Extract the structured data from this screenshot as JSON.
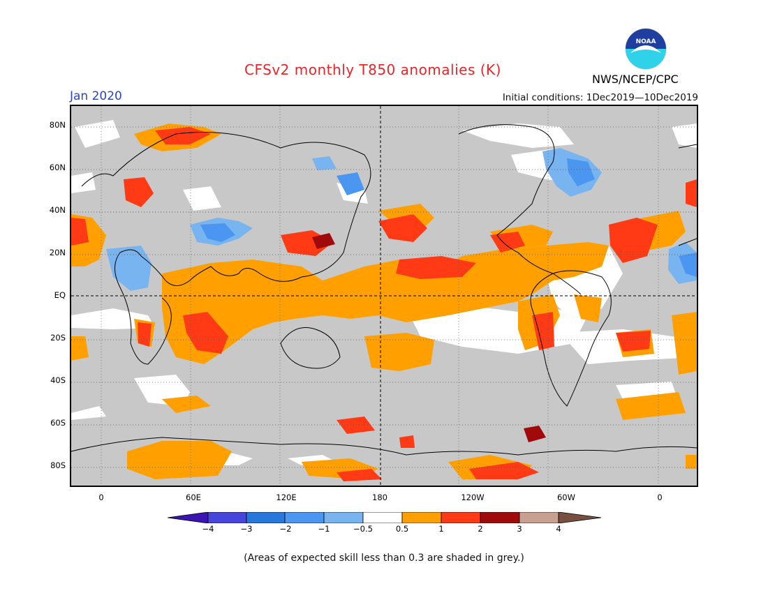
{
  "header": {
    "title": "CFSv2 monthly T850 anomalies (K)",
    "valid_month": "Jan 2020",
    "initial_conditions": "Initial conditions: 1Dec2019—10Dec2019",
    "agency": "NWS/NCEP/CPC",
    "logo_text": "NOAA"
  },
  "map": {
    "projection": "cylindrical equidistant",
    "lon_range": [
      -30,
      390
    ],
    "lat_range": [
      -90,
      90
    ],
    "y_tick_labels": [
      "80N",
      "60N",
      "40N",
      "20N",
      "EQ",
      "20S",
      "40S",
      "60S",
      "80S"
    ],
    "x_tick_labels": [
      "0",
      "60E",
      "120E",
      "180",
      "120W",
      "60W",
      "0"
    ],
    "skill_mask_color": "#c8c8c8",
    "dashed_reference_lines": [
      "Equator",
      "180"
    ]
  },
  "colorbar": {
    "labels": [
      "−4",
      "−3",
      "−2",
      "−1",
      "−0.5",
      "0.5",
      "1",
      "2",
      "3",
      "4"
    ],
    "colors": [
      "#3c14b4",
      "#4646dc",
      "#2878dc",
      "#4a96f0",
      "#78b4f0",
      "#ffffff",
      "#ffa000",
      "#ff3a14",
      "#a00a0a",
      "#c8a090",
      "#785040"
    ]
  },
  "footnote": "(Areas of expected skill less than 0.3 are shaded in grey.)"
}
